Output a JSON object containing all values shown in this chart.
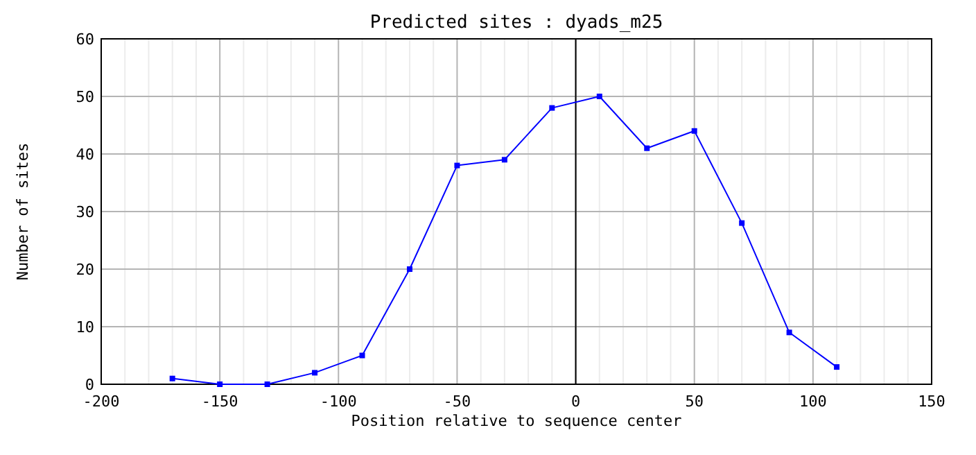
{
  "chart_data": {
    "type": "line",
    "title": "Predicted sites : dyads_m25",
    "xlabel": "Position relative to sequence center",
    "ylabel": "Number of sites",
    "x": [
      -170,
      -150,
      -130,
      -110,
      -90,
      -70,
      -50,
      -30,
      -10,
      10,
      30,
      50,
      70,
      90,
      110
    ],
    "series": [
      {
        "color": "#0000ff",
        "values": [
          1,
          0,
          0,
          2,
          5,
          20,
          38,
          39,
          48,
          50,
          41,
          44,
          28,
          9,
          3
        ]
      }
    ],
    "xlim": [
      -200,
      150
    ],
    "xticks": [
      -200,
      {
        "value": -190,
        "label": null
      },
      {
        "value": -180,
        "label": null
      },
      {
        "value": -170,
        "label": null
      },
      {
        "value": -160,
        "label": null
      },
      -150,
      {
        "value": -140,
        "label": null
      },
      {
        "value": -130,
        "label": null
      },
      {
        "value": -120,
        "label": null
      },
      {
        "value": -110,
        "label": null
      },
      -100,
      {
        "value": -90,
        "label": null
      },
      {
        "value": -80,
        "label": null
      },
      {
        "value": -70,
        "label": null
      },
      {
        "value": -60,
        "label": null
      },
      -50,
      {
        "value": -40,
        "label": null
      },
      {
        "value": -30,
        "label": null
      },
      {
        "value": -20,
        "label": null
      },
      {
        "value": -10,
        "label": null
      },
      0,
      {
        "value": 10,
        "label": null
      },
      {
        "value": 20,
        "label": null
      },
      {
        "value": 30,
        "label": null
      },
      {
        "value": 40,
        "label": null
      },
      50,
      {
        "value": 60,
        "label": null
      },
      {
        "value": 70,
        "label": null
      },
      {
        "value": 80,
        "label": null
      },
      {
        "value": 90,
        "label": null
      },
      100,
      {
        "value": 110,
        "label": null
      },
      {
        "value": 120,
        "label": null
      },
      {
        "value": 130,
        "label": null
      },
      {
        "value": 140,
        "label": null
      },
      150
    ],
    "ylim": [
      0,
      60
    ],
    "yticks": [
      0,
      10,
      20,
      30,
      40,
      50,
      60
    ],
    "grid": true,
    "marker": "square",
    "line_style": "solid",
    "ref_lines": [
      {
        "axis": "x",
        "value": 0,
        "color": "#000000"
      }
    ]
  }
}
